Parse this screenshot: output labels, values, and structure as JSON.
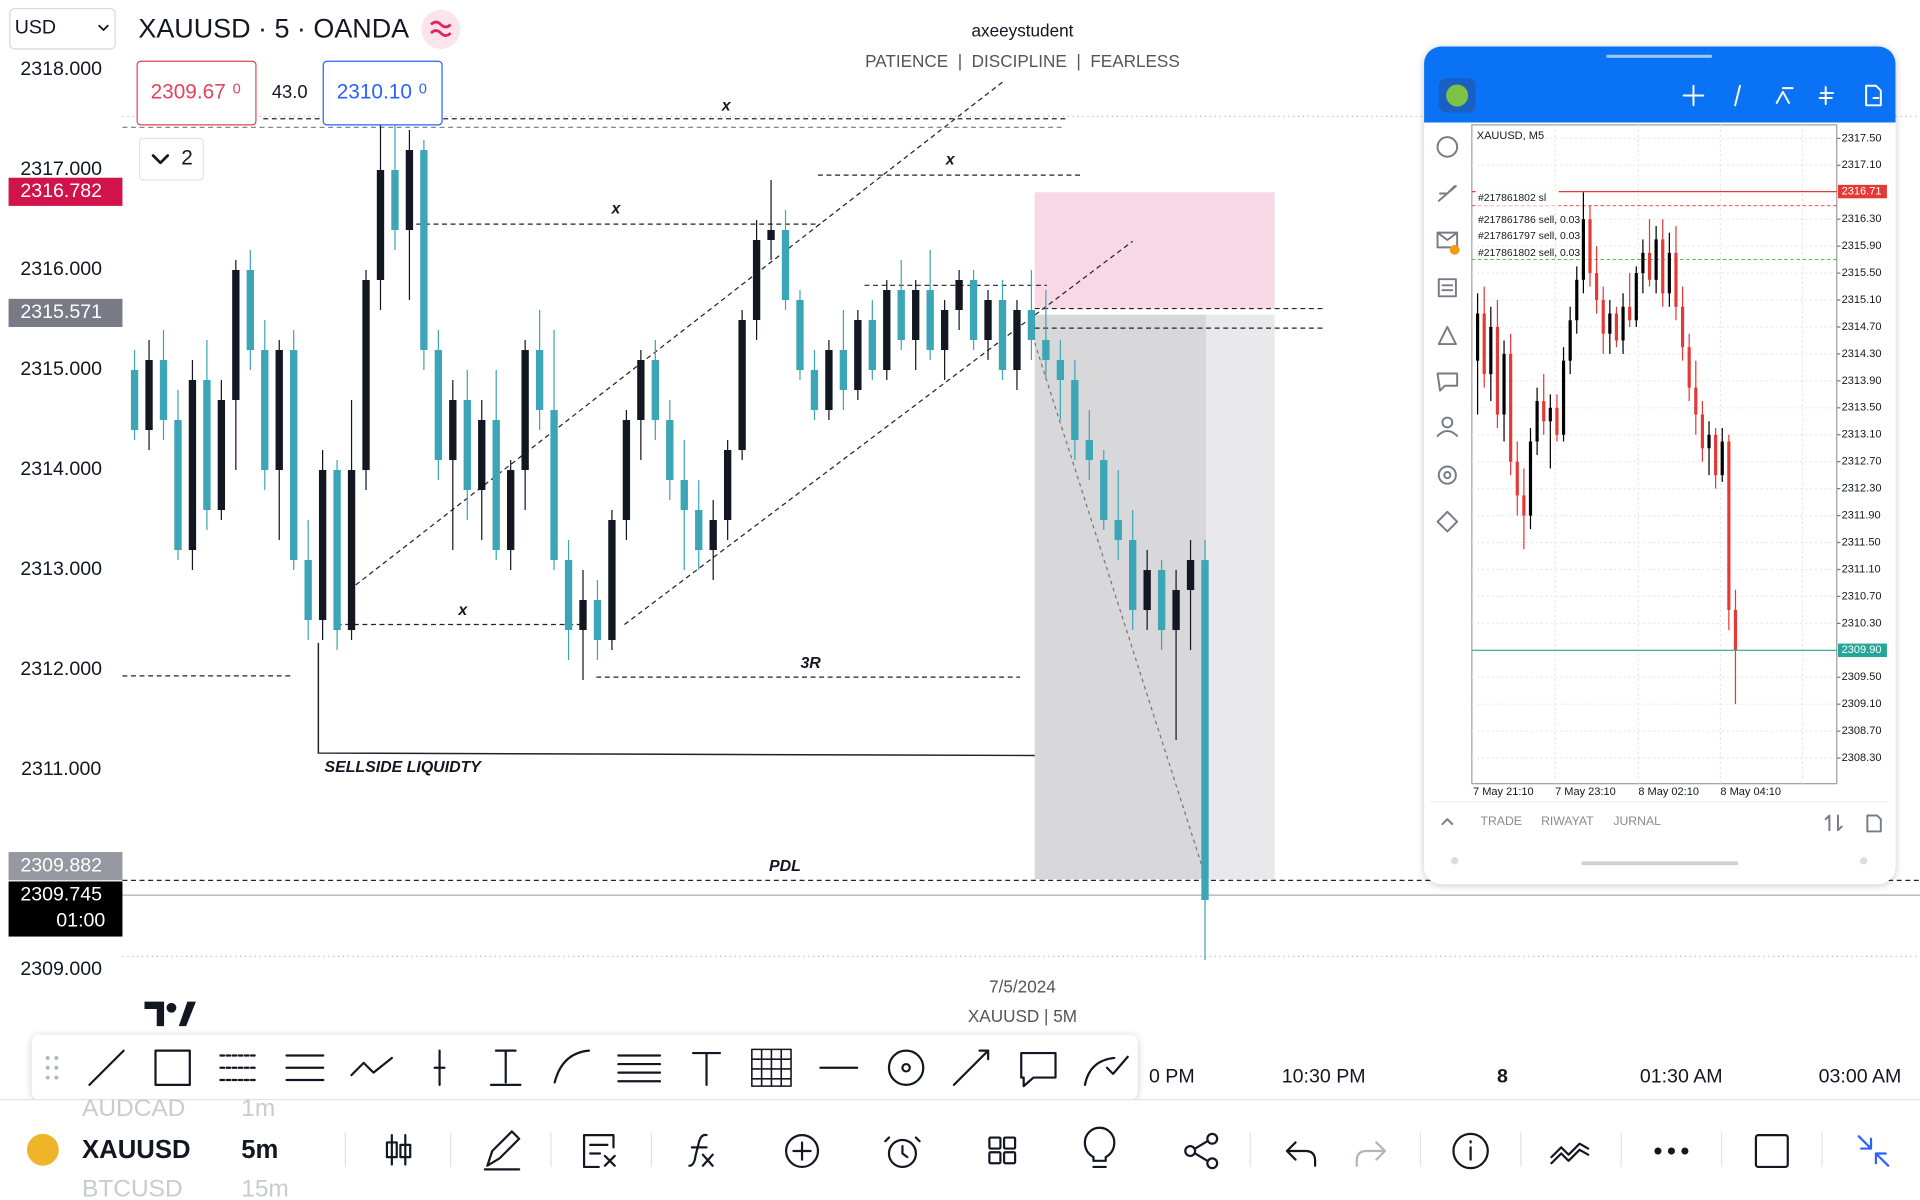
{
  "header": {
    "currency": "USD",
    "symbol_title": "XAUUSD · 5 · OANDA",
    "bid_main": "2309.67",
    "bid_small": "0",
    "spread": "43.0",
    "ask_main": "2310.10",
    "ask_small": "0",
    "indicator_count": "2"
  },
  "watermark": {
    "user": "axeeystudent",
    "motto": "PATIENCE  |  DISCIPLINE  |  FEARLESS",
    "date": "7/5/2024",
    "symbol": "XAUUSD | 5M"
  },
  "chart_data": [
    {
      "type": "candlestick",
      "up_color": "#131722",
      "down_color": "#3da6b6",
      "grid": false,
      "ylim": [
        2308.4,
        2318.7
      ],
      "yticks": [
        {
          "value": 2318,
          "label": "2318.000"
        },
        {
          "value": 2317,
          "label": "2317.000"
        },
        {
          "value": 2316,
          "label": "2316.000"
        },
        {
          "value": 2315,
          "label": "2315.000"
        },
        {
          "value": 2314,
          "label": "2314.000"
        },
        {
          "value": 2313,
          "label": "2313.000"
        },
        {
          "value": 2312,
          "label": "2312.000"
        },
        {
          "value": 2311,
          "label": "2311.000"
        },
        {
          "value": 2309,
          "label": "2309.000"
        }
      ],
      "xtick_labels": [
        "0 PM",
        "10:30 PM",
        "8",
        "01:30 AM",
        "03:00 AM"
      ],
      "price_markers": [
        {
          "value": 2316.782,
          "color": "#d0134a"
        },
        {
          "value": 2315.571,
          "color": "#787b86"
        },
        {
          "value": 2309.882,
          "color": "#9598a1"
        },
        {
          "value": 2309.745,
          "color": "#000000",
          "countdown": "01:00"
        }
      ],
      "annotations": [
        "x",
        "x",
        "x",
        "x",
        "3R",
        "SELLSIDE LIQUIDTY",
        "PDL"
      ],
      "candles": [
        [
          2315.0,
          2315.2,
          2314.3,
          2314.4
        ],
        [
          2314.4,
          2315.3,
          2314.2,
          2315.1
        ],
        [
          2315.1,
          2315.4,
          2314.3,
          2314.5
        ],
        [
          2314.5,
          2314.8,
          2313.1,
          2313.2
        ],
        [
          2313.2,
          2315.1,
          2313.0,
          2314.9
        ],
        [
          2314.9,
          2315.3,
          2313.4,
          2313.6
        ],
        [
          2313.6,
          2314.9,
          2313.5,
          2314.7
        ],
        [
          2314.7,
          2316.1,
          2314.0,
          2316.0
        ],
        [
          2316.0,
          2316.2,
          2315.0,
          2315.2
        ],
        [
          2315.2,
          2315.5,
          2313.8,
          2314.0
        ],
        [
          2314.0,
          2315.3,
          2313.3,
          2315.2
        ],
        [
          2315.2,
          2315.4,
          2313.0,
          2313.1
        ],
        [
          2313.1,
          2313.5,
          2312.3,
          2312.5
        ],
        [
          2312.5,
          2314.2,
          2312.3,
          2314.0
        ],
        [
          2314.0,
          2314.1,
          2312.2,
          2312.4
        ],
        [
          2312.4,
          2314.7,
          2312.3,
          2314.0
        ],
        [
          2314.0,
          2316.0,
          2313.8,
          2315.9
        ],
        [
          2315.9,
          2317.5,
          2315.6,
          2317.0
        ],
        [
          2317.0,
          2317.6,
          2316.2,
          2316.4
        ],
        [
          2316.4,
          2317.4,
          2315.7,
          2317.2
        ],
        [
          2317.2,
          2317.3,
          2315.0,
          2315.2
        ],
        [
          2315.2,
          2315.4,
          2313.9,
          2314.1
        ],
        [
          2314.1,
          2314.9,
          2313.2,
          2314.7
        ],
        [
          2314.7,
          2315.0,
          2313.5,
          2313.8
        ],
        [
          2313.8,
          2314.7,
          2313.3,
          2314.5
        ],
        [
          2314.5,
          2315.0,
          2313.1,
          2313.2
        ],
        [
          2313.2,
          2314.1,
          2313.0,
          2314.0
        ],
        [
          2314.0,
          2315.3,
          2313.6,
          2315.2
        ],
        [
          2315.2,
          2315.6,
          2314.4,
          2314.6
        ],
        [
          2314.6,
          2315.4,
          2313.0,
          2313.1
        ],
        [
          2313.1,
          2313.3,
          2312.1,
          2312.4
        ],
        [
          2312.4,
          2313.0,
          2311.9,
          2312.7
        ],
        [
          2312.7,
          2312.9,
          2312.1,
          2312.3
        ],
        [
          2312.3,
          2313.6,
          2312.2,
          2313.5
        ],
        [
          2313.5,
          2314.6,
          2313.3,
          2314.5
        ],
        [
          2314.5,
          2315.2,
          2314.1,
          2315.1
        ],
        [
          2315.1,
          2315.3,
          2314.3,
          2314.5
        ],
        [
          2314.5,
          2314.7,
          2313.7,
          2313.9
        ],
        [
          2313.9,
          2314.3,
          2313.0,
          2313.6
        ],
        [
          2313.6,
          2313.9,
          2313.0,
          2313.2
        ],
        [
          2313.2,
          2313.7,
          2312.9,
          2313.5
        ],
        [
          2313.5,
          2314.3,
          2313.3,
          2314.2
        ],
        [
          2314.2,
          2315.6,
          2314.1,
          2315.5
        ],
        [
          2315.5,
          2316.5,
          2315.3,
          2316.3
        ],
        [
          2316.3,
          2316.9,
          2316.1,
          2316.4
        ],
        [
          2316.4,
          2316.6,
          2315.6,
          2315.7
        ],
        [
          2315.7,
          2315.8,
          2314.9,
          2315.0
        ],
        [
          2315.0,
          2315.2,
          2314.5,
          2314.6
        ],
        [
          2314.6,
          2315.3,
          2314.5,
          2315.2
        ],
        [
          2315.2,
          2315.6,
          2314.6,
          2314.8
        ],
        [
          2314.8,
          2315.6,
          2314.7,
          2315.5
        ],
        [
          2315.5,
          2315.7,
          2314.9,
          2315.0
        ],
        [
          2315.0,
          2315.9,
          2314.9,
          2315.8
        ],
        [
          2315.8,
          2316.1,
          2315.2,
          2315.3
        ],
        [
          2315.3,
          2315.9,
          2315.0,
          2315.8
        ],
        [
          2315.8,
          2316.2,
          2315.1,
          2315.2
        ],
        [
          2315.2,
          2315.7,
          2314.9,
          2315.6
        ],
        [
          2315.6,
          2316.0,
          2315.4,
          2315.9
        ],
        [
          2315.9,
          2316.0,
          2315.2,
          2315.3
        ],
        [
          2315.3,
          2315.8,
          2315.1,
          2315.7
        ],
        [
          2315.7,
          2315.9,
          2314.9,
          2315.0
        ],
        [
          2315.0,
          2315.7,
          2314.8,
          2315.6
        ],
        [
          2315.6,
          2316.0,
          2315.1,
          2315.3
        ],
        [
          2315.3,
          2315.8,
          2314.9,
          2315.1
        ],
        [
          2315.1,
          2315.3,
          2314.5,
          2314.9
        ],
        [
          2314.9,
          2315.1,
          2314.1,
          2314.3
        ],
        [
          2314.3,
          2314.6,
          2313.9,
          2314.1
        ],
        [
          2314.1,
          2314.2,
          2313.4,
          2313.5
        ],
        [
          2313.5,
          2314.0,
          2313.1,
          2313.3
        ],
        [
          2313.3,
          2313.6,
          2312.4,
          2312.6
        ],
        [
          2312.6,
          2313.2,
          2312.4,
          2313.0
        ],
        [
          2313.0,
          2313.1,
          2312.2,
          2312.4
        ],
        [
          2312.4,
          2313.0,
          2311.3,
          2312.8
        ],
        [
          2312.8,
          2313.3,
          2312.2,
          2313.1
        ],
        [
          2313.1,
          2313.3,
          2309.1,
          2309.7
        ]
      ]
    },
    {
      "type": "candlestick",
      "title": "XAUUSD, M5",
      "up_color": "#000000",
      "down_color": "#e53935",
      "grid": true,
      "ylim": [
        2307.92,
        2317.7
      ],
      "yticks": [
        {
          "value": 2317.5,
          "label": "2317.50"
        },
        {
          "value": 2317.1,
          "label": "2317.10"
        },
        {
          "value": 2316.3,
          "label": "2316.30"
        },
        {
          "value": 2315.9,
          "label": "2315.90"
        },
        {
          "value": 2315.5,
          "label": "2315.50"
        },
        {
          "value": 2315.1,
          "label": "2315.10"
        },
        {
          "value": 2314.7,
          "label": "2314.70"
        },
        {
          "value": 2314.3,
          "label": "2314.30"
        },
        {
          "value": 2313.9,
          "label": "2313.90"
        },
        {
          "value": 2313.5,
          "label": "2313.50"
        },
        {
          "value": 2313.1,
          "label": "2313.10"
        },
        {
          "value": 2312.7,
          "label": "2312.70"
        },
        {
          "value": 2312.3,
          "label": "2312.30"
        },
        {
          "value": 2311.9,
          "label": "2311.90"
        },
        {
          "value": 2311.5,
          "label": "2311.50"
        },
        {
          "value": 2311.1,
          "label": "2311.10"
        },
        {
          "value": 2310.7,
          "label": "2310.70"
        },
        {
          "value": 2310.3,
          "label": "2310.30"
        },
        {
          "value": 2309.5,
          "label": "2309.50"
        },
        {
          "value": 2309.1,
          "label": "2309.10"
        },
        {
          "value": 2308.7,
          "label": "2308.70"
        },
        {
          "value": 2308.3,
          "label": "2308.30"
        }
      ],
      "xtick_labels": [
        "7 May 21:10",
        "7 May 23:10",
        "8 May 02:10",
        "8 May 04:10"
      ],
      "price_markers": [
        {
          "value": 2316.71,
          "color": "#e53935"
        },
        {
          "value": 2309.9,
          "label": "2309.90",
          "color": "#26a69a"
        }
      ],
      "orders": [
        "#217861802 sl",
        "#217861786 sell, 0.03",
        "#217861797 sell, 0.03",
        "#217861802 sell, 0.03"
      ],
      "tabs": [
        "TRADE",
        "RIWAYAT",
        "JURNAL"
      ],
      "candles": [
        [
          2314.2,
          2315.2,
          2313.4,
          2314.9
        ],
        [
          2314.9,
          2315.3,
          2313.8,
          2314.0
        ],
        [
          2314.0,
          2315.0,
          2313.6,
          2314.7
        ],
        [
          2314.7,
          2315.1,
          2313.2,
          2313.4
        ],
        [
          2313.4,
          2314.5,
          2313.0,
          2314.3
        ],
        [
          2314.3,
          2314.6,
          2312.5,
          2312.7
        ],
        [
          2312.7,
          2313.0,
          2311.9,
          2312.2
        ],
        [
          2312.2,
          2312.6,
          2311.4,
          2311.9
        ],
        [
          2311.9,
          2313.2,
          2311.7,
          2313.0
        ],
        [
          2313.0,
          2313.8,
          2312.8,
          2313.6
        ],
        [
          2313.6,
          2314.0,
          2313.1,
          2313.3
        ],
        [
          2313.3,
          2313.7,
          2312.6,
          2313.5
        ],
        [
          2313.5,
          2313.7,
          2313.0,
          2313.1
        ],
        [
          2313.1,
          2314.4,
          2313.0,
          2314.2
        ],
        [
          2314.2,
          2315.0,
          2314.0,
          2314.8
        ],
        [
          2314.8,
          2315.6,
          2314.6,
          2315.4
        ],
        [
          2315.4,
          2316.7,
          2315.2,
          2316.3
        ],
        [
          2316.3,
          2316.5,
          2315.3,
          2315.5
        ],
        [
          2315.5,
          2315.9,
          2314.9,
          2315.1
        ],
        [
          2315.1,
          2315.3,
          2314.3,
          2314.6
        ],
        [
          2314.6,
          2315.1,
          2314.3,
          2314.9
        ],
        [
          2314.9,
          2315.0,
          2314.4,
          2314.5
        ],
        [
          2314.5,
          2315.2,
          2314.3,
          2315.0
        ],
        [
          2315.0,
          2315.5,
          2314.7,
          2314.8
        ],
        [
          2314.8,
          2315.6,
          2314.7,
          2315.5
        ],
        [
          2315.5,
          2316.0,
          2315.2,
          2315.8
        ],
        [
          2315.8,
          2316.3,
          2315.3,
          2315.4
        ],
        [
          2315.4,
          2316.2,
          2315.2,
          2316.0
        ],
        [
          2316.0,
          2316.3,
          2315.0,
          2315.2
        ],
        [
          2315.2,
          2316.1,
          2315.0,
          2315.8
        ],
        [
          2315.8,
          2316.2,
          2314.8,
          2315.0
        ],
        [
          2315.0,
          2315.3,
          2314.2,
          2314.4
        ],
        [
          2314.4,
          2314.6,
          2313.6,
          2313.8
        ],
        [
          2313.8,
          2314.2,
          2313.1,
          2313.4
        ],
        [
          2313.4,
          2313.6,
          2312.7,
          2312.9
        ],
        [
          2312.9,
          2313.3,
          2312.5,
          2313.1
        ],
        [
          2313.1,
          2313.2,
          2312.3,
          2312.5
        ],
        [
          2312.5,
          2313.2,
          2312.4,
          2313.0
        ],
        [
          2313.0,
          2313.1,
          2310.2,
          2310.5
        ],
        [
          2310.5,
          2310.8,
          2309.1,
          2309.9
        ]
      ]
    }
  ],
  "bottom_bar": {
    "prev_symbol": "AUDCAD",
    "prev_interval": "1m",
    "symbol": "XAUUSD",
    "interval": "5m",
    "next_symbol": "BTCUSD",
    "next_interval": "15m"
  }
}
